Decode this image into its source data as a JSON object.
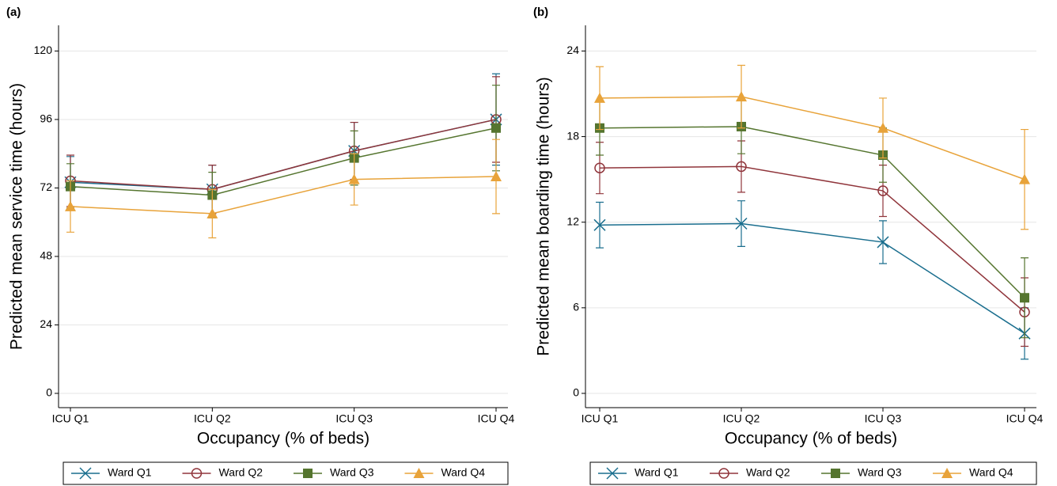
{
  "chart_data": [
    {
      "type": "line",
      "panel_label": "(a)",
      "y_label": "Predicted mean service time (hours)",
      "x_label": "Occupancy (% of beds)",
      "categories": [
        "ICU Q1",
        "ICU Q2",
        "ICU Q3",
        "ICU Q4"
      ],
      "ylim": [
        -5,
        129
      ],
      "yticks": [
        0,
        24,
        48,
        72,
        96,
        120
      ],
      "grid": true,
      "series": [
        {
          "name": "Ward Q1",
          "color": "#1a6e8e",
          "marker": "x",
          "values": [
            74,
            71.5,
            85,
            96
          ],
          "errors": [
            9,
            8.5,
            10,
            16
          ]
        },
        {
          "name": "Ward Q2",
          "color": "#90353b",
          "marker": "circle",
          "values": [
            74.5,
            71.5,
            85,
            96
          ],
          "errors": [
            9,
            8.5,
            10,
            15
          ]
        },
        {
          "name": "Ward Q3",
          "color": "#55752f",
          "marker": "square",
          "values": [
            72.5,
            69.5,
            82.5,
            93
          ],
          "errors": [
            8,
            8,
            9.5,
            15
          ]
        },
        {
          "name": "Ward Q4",
          "color": "#e8a33a",
          "marker": "triangle",
          "values": [
            65.5,
            63,
            75,
            76
          ],
          "errors": [
            9,
            8.5,
            9,
            13
          ]
        }
      ]
    },
    {
      "type": "line",
      "panel_label": "(b)",
      "y_label": "Predicted mean boarding time (hours)",
      "x_label": "Occupancy (% of beds)",
      "categories": [
        "ICU Q1",
        "ICU Q2",
        "ICU Q3",
        "ICU Q4"
      ],
      "ylim": [
        -1,
        25.8
      ],
      "yticks": [
        0,
        6,
        12,
        18,
        24
      ],
      "grid": true,
      "series": [
        {
          "name": "Ward Q1",
          "color": "#1a6e8e",
          "marker": "x",
          "values": [
            11.8,
            11.9,
            10.6,
            4.2
          ],
          "errors": [
            1.6,
            1.6,
            1.5,
            1.8
          ]
        },
        {
          "name": "Ward Q2",
          "color": "#90353b",
          "marker": "circle",
          "values": [
            15.8,
            15.9,
            14.2,
            5.7
          ],
          "errors": [
            1.8,
            1.8,
            1.8,
            2.4
          ]
        },
        {
          "name": "Ward Q3",
          "color": "#55752f",
          "marker": "square",
          "values": [
            18.6,
            18.7,
            16.7,
            6.7
          ],
          "errors": [
            1.9,
            1.9,
            1.9,
            2.8
          ]
        },
        {
          "name": "Ward Q4",
          "color": "#e8a33a",
          "marker": "triangle",
          "values": [
            20.7,
            20.8,
            18.6,
            15.0
          ],
          "errors": [
            2.2,
            2.2,
            2.1,
            3.5
          ]
        }
      ]
    }
  ]
}
